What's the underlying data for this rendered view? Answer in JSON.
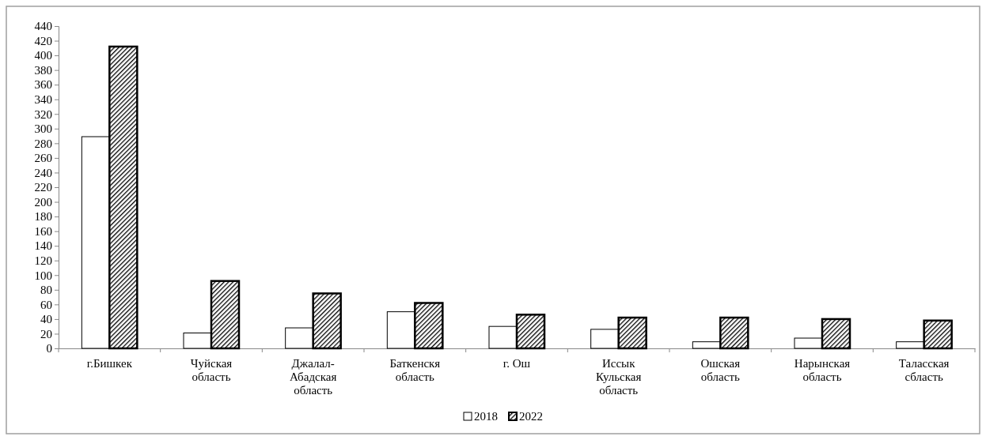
{
  "chart_data": {
    "type": "bar",
    "categories": [
      "г.Бишкек",
      "Чуйская область",
      "Джалал-Абадская область",
      "Баткенскя область",
      "г. Ош",
      "Иссык Кульская область",
      "Ошская область",
      "Нарынская область",
      "Таласская сбласть"
    ],
    "series": [
      {
        "name": "2018",
        "color": "#ffffff",
        "values": [
          289,
          21,
          28,
          50,
          30,
          26,
          9,
          14,
          9
        ]
      },
      {
        "name": "2022",
        "color": "#000000",
        "values": [
          412,
          92,
          75,
          62,
          46,
          42,
          42,
          40,
          38
        ]
      }
    ],
    "ylim": [
      0,
      440
    ],
    "yticks": [
      0,
      20,
      40,
      60,
      80,
      100,
      120,
      140,
      160,
      180,
      200,
      220,
      240,
      260,
      280,
      300,
      320,
      340,
      360,
      380,
      400,
      420,
      440
    ],
    "grid": false,
    "legend": "bottom"
  }
}
